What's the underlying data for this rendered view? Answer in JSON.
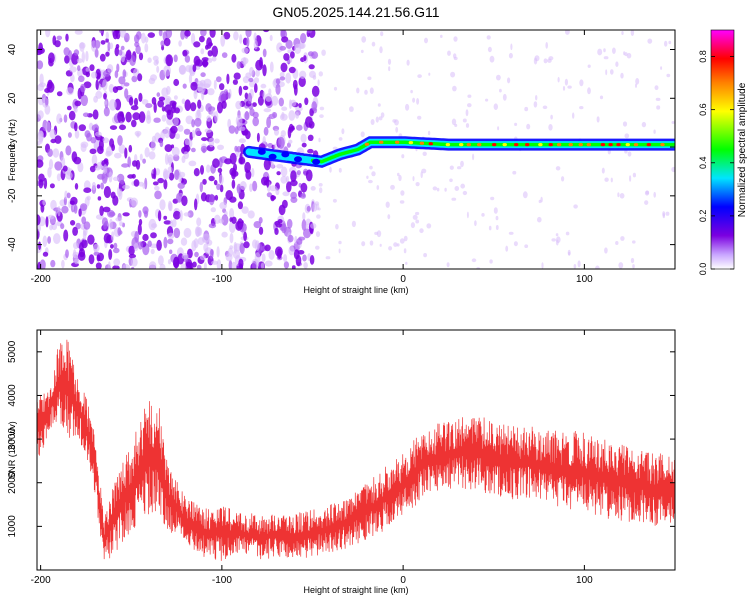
{
  "figure_title": "GN05.2025.144.21.56.G11",
  "chart_data": [
    {
      "type": "heatmap",
      "title": "GN05.2025.144.21.56.G11",
      "xlabel": "Height of straight line (km)",
      "ylabel": "Frequency (Hz)",
      "xlim": [
        -202,
        150
      ],
      "ylim": [
        -50,
        48
      ],
      "xticks": [
        -200,
        -100,
        0,
        100
      ],
      "yticks": [
        -40,
        -20,
        0,
        20,
        40
      ],
      "colorbar": {
        "label": "Normalized spectral amplitude",
        "range": [
          0,
          0.9
        ],
        "ticks": [
          0.0,
          0.2,
          0.4,
          0.6,
          0.8
        ],
        "colormap": [
          "#ffffff",
          "#7b00e0",
          "#0000ff",
          "#00e5ff",
          "#00ff00",
          "#ffff00",
          "#ff8000",
          "#ff0000",
          "#ff00ff"
        ]
      },
      "ridge": {
        "description_points_x": [
          -85,
          -75,
          -65,
          -55,
          -45,
          -35,
          -25,
          -18,
          -10,
          0,
          25,
          50,
          75,
          100,
          125,
          150
        ],
        "description_points_y": [
          -2,
          -3,
          -4,
          -5,
          -6,
          -3,
          -1,
          2,
          2,
          2,
          1,
          1,
          1,
          1,
          1,
          1
        ]
      },
      "noise_region_x": [
        -202,
        -48
      ],
      "accent_color": "#7b00e0"
    },
    {
      "type": "line",
      "xlabel": "Height of straight line (km)",
      "ylabel": "SNR (10 * v/v)",
      "xlim": [
        -202,
        150
      ],
      "ylim": [
        0,
        5500
      ],
      "xticks": [
        -200,
        -100,
        0,
        100
      ],
      "yticks": [
        1000,
        2000,
        3000,
        4000,
        5000
      ],
      "series": [
        {
          "color": "#ee3333",
          "envelope_x": [
            -202,
            -195,
            -190,
            -185,
            -180,
            -175,
            -170,
            -165,
            -160,
            -150,
            -140,
            -135,
            -130,
            -120,
            -110,
            -100,
            -90,
            -80,
            -70,
            -60,
            -50,
            -40,
            -30,
            -20,
            -10,
            0,
            10,
            20,
            30,
            40,
            50,
            60,
            70,
            80,
            90,
            100,
            110,
            120,
            130,
            140,
            150
          ],
          "envelope_low": [
            2400,
            3200,
            3400,
            3000,
            3000,
            2600,
            1600,
            200,
            300,
            900,
            1200,
            1000,
            900,
            600,
            300,
            200,
            400,
            200,
            300,
            200,
            300,
            400,
            500,
            700,
            900,
            1200,
            1600,
            1800,
            1900,
            1800,
            1700,
            1600,
            1600,
            1500,
            1400,
            1300,
            1200,
            1100,
            1100,
            1000,
            1100
          ],
          "envelope_high": [
            4000,
            4200,
            5200,
            5300,
            4500,
            4000,
            3200,
            1200,
            2000,
            2900,
            4000,
            3900,
            2400,
            1700,
            1400,
            1500,
            1300,
            1300,
            1300,
            1300,
            1400,
            1500,
            1700,
            2000,
            2400,
            2700,
            3200,
            3400,
            3500,
            3600,
            3400,
            3300,
            3300,
            3200,
            3200,
            3200,
            3000,
            2900,
            2800,
            2700,
            2600
          ]
        }
      ]
    }
  ]
}
